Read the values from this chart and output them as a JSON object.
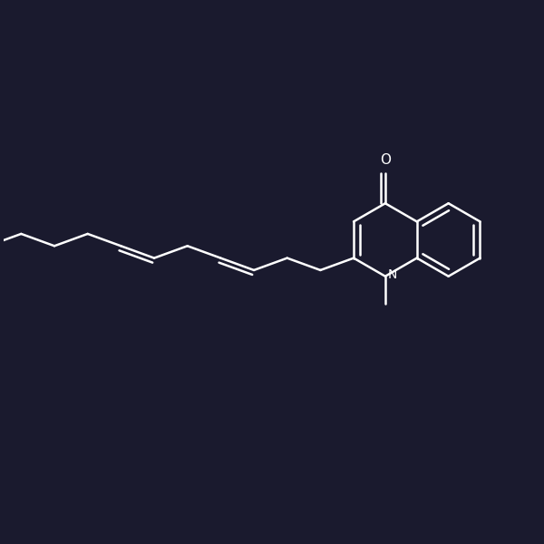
{
  "bg_color": "#1a1a2e",
  "line_color": "#ffffff",
  "line_width": 1.8,
  "fig_width": 6.0,
  "fig_height": 6.0,
  "dpi": 100
}
